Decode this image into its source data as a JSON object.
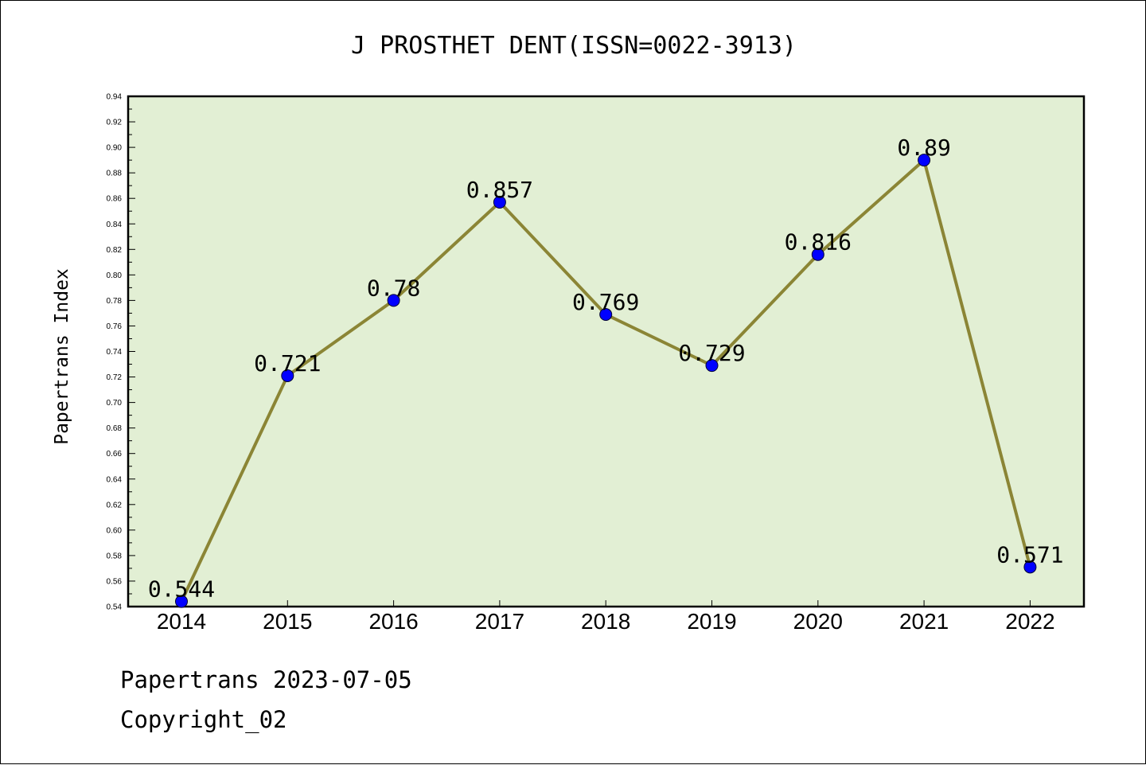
{
  "chart_data": {
    "type": "line",
    "title": "J PROSTHET DENT(ISSN=0022-3913)",
    "ylabel": "Papertrans Index",
    "xlabel": "",
    "categories": [
      "2014",
      "2015",
      "2016",
      "2017",
      "2018",
      "2019",
      "2020",
      "2021",
      "2022"
    ],
    "values": [
      0.544,
      0.721,
      0.78,
      0.857,
      0.769,
      0.729,
      0.816,
      0.89,
      0.571
    ],
    "data_labels": [
      "0.544",
      "0.721",
      "0.78",
      "0.857",
      "0.769",
      "0.729",
      "0.816",
      "0.89",
      "0.571"
    ],
    "ylim": [
      0.54,
      0.94
    ],
    "yticks": [
      "0.54",
      "0.56",
      "0.58",
      "0.60",
      "0.62",
      "0.64",
      "0.66",
      "0.68",
      "0.70",
      "0.72",
      "0.74",
      "0.76",
      "0.78",
      "0.80",
      "0.82",
      "0.84",
      "0.86",
      "0.88",
      "0.90",
      "0.92",
      "0.94"
    ],
    "grid": false,
    "legend": "none",
    "colors": {
      "plot_background": "#e2efd4",
      "line": "#8b8535",
      "marker": "#0000ff"
    }
  },
  "footer": {
    "line1": "Papertrans 2023-07-05",
    "line2": "Copyright_02"
  }
}
